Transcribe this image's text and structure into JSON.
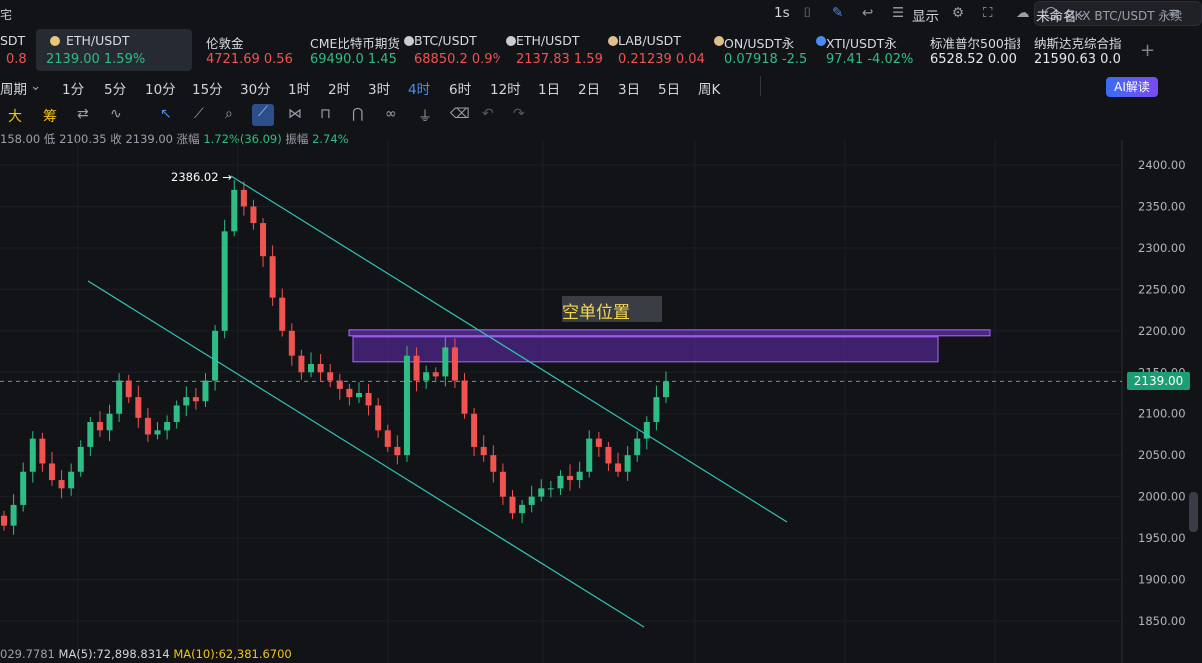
{
  "app": {
    "top_left_text": "宅",
    "search_placeholder": "OKX BTC/USDT 永续"
  },
  "tickers": [
    {
      "name": "SDT",
      "value": "0.8",
      "value_color": "red"
    },
    {
      "name": "ETH/USDT",
      "value": "2139.00",
      "change": "1.59%",
      "value_color": "green",
      "active": true
    },
    {
      "name": "伦敦金",
      "value": "4721.69",
      "change": "0.56",
      "value_color": "red"
    },
    {
      "name": "CME比特币期货",
      "value": "69490.0",
      "change": "1.45",
      "value_color": "green"
    },
    {
      "name": "BTC/USDT",
      "value": "68850.2",
      "change": "0.9%",
      "value_color": "red"
    },
    {
      "name": "ETH/USDT",
      "value": "2137.83",
      "change": "1.59",
      "value_color": "red"
    },
    {
      "name": "LAB/USDT",
      "value": "0.21239",
      "change": "0.04",
      "value_color": "red"
    },
    {
      "name": "ON/USDT永",
      "value": "0.07918",
      "change": "-2.5",
      "value_color": "green"
    },
    {
      "name": "XTI/USDT永",
      "value": "97.41",
      "change": "-4.02%",
      "value_color": "green"
    },
    {
      "name": "标准普尔500指数",
      "value": "6528.52",
      "change": "0.00",
      "value_color": "white"
    },
    {
      "name": "纳斯达克综合指",
      "value": "21590.63",
      "change": "0.0",
      "value_color": "white"
    }
  ],
  "intervals": {
    "period_label": "周期",
    "items": [
      "1分",
      "5分",
      "10分",
      "15分",
      "30分",
      "1时",
      "2时",
      "3时",
      "4时",
      "6时",
      "12时",
      "1日",
      "2日",
      "3日",
      "5日",
      "周K"
    ],
    "selected": "4时"
  },
  "toolbar_right": {
    "s1": "1s",
    "display": "显示",
    "layout_name": "未命名",
    "ai_button": "AI解读"
  },
  "drawbar": {
    "t1": "大",
    "t2": "筹"
  },
  "ohlc": {
    "high_part": "158.00",
    "low_label": "低",
    "low": "2100.35",
    "close_label": "收",
    "close": "2139.00",
    "change_label": "涨幅",
    "change": "1.72%(36.09)",
    "amp_label": "振幅",
    "amp": "2.74%"
  },
  "chart_data": {
    "type": "candlestick",
    "y_ticks": [
      2400,
      2350,
      2300,
      2250,
      2200,
      2150,
      2100,
      2050,
      2000,
      1950,
      1900,
      1850
    ],
    "ylim": [
      1830,
      2420
    ],
    "last_price": "2139.00",
    "high_marker": "2386.02",
    "annotation": "空单位置",
    "short_zone": [
      2165,
      2200
    ],
    "closes": [
      1965,
      1990,
      2030,
      2070,
      2040,
      2020,
      2010,
      2030,
      2060,
      2090,
      2080,
      2100,
      2140,
      2120,
      2095,
      2075,
      2080,
      2090,
      2110,
      2120,
      2115,
      2140,
      2200,
      2320,
      2370,
      2350,
      2330,
      2290,
      2240,
      2200,
      2170,
      2150,
      2160,
      2150,
      2140,
      2130,
      2120,
      2125,
      2110,
      2080,
      2060,
      2050,
      2170,
      2140,
      2150,
      2145,
      2180,
      2140,
      2100,
      2060,
      2050,
      2030,
      2000,
      1980,
      1990,
      2000,
      2010,
      2010,
      2025,
      2020,
      2030,
      2070,
      2060,
      2040,
      2030,
      2050,
      2070,
      2090,
      2120,
      2139
    ]
  },
  "footer": {
    "left_partial": "029.7781",
    "ma5": "MA(5):72,898.8314",
    "ma10": "MA(10):62,381.6700"
  },
  "colors": {
    "up": "#2ebd85",
    "down": "#f05350",
    "trendline": "#2ec5b6",
    "zone": "#8a3fe0",
    "accent": "#4a8cf7"
  }
}
